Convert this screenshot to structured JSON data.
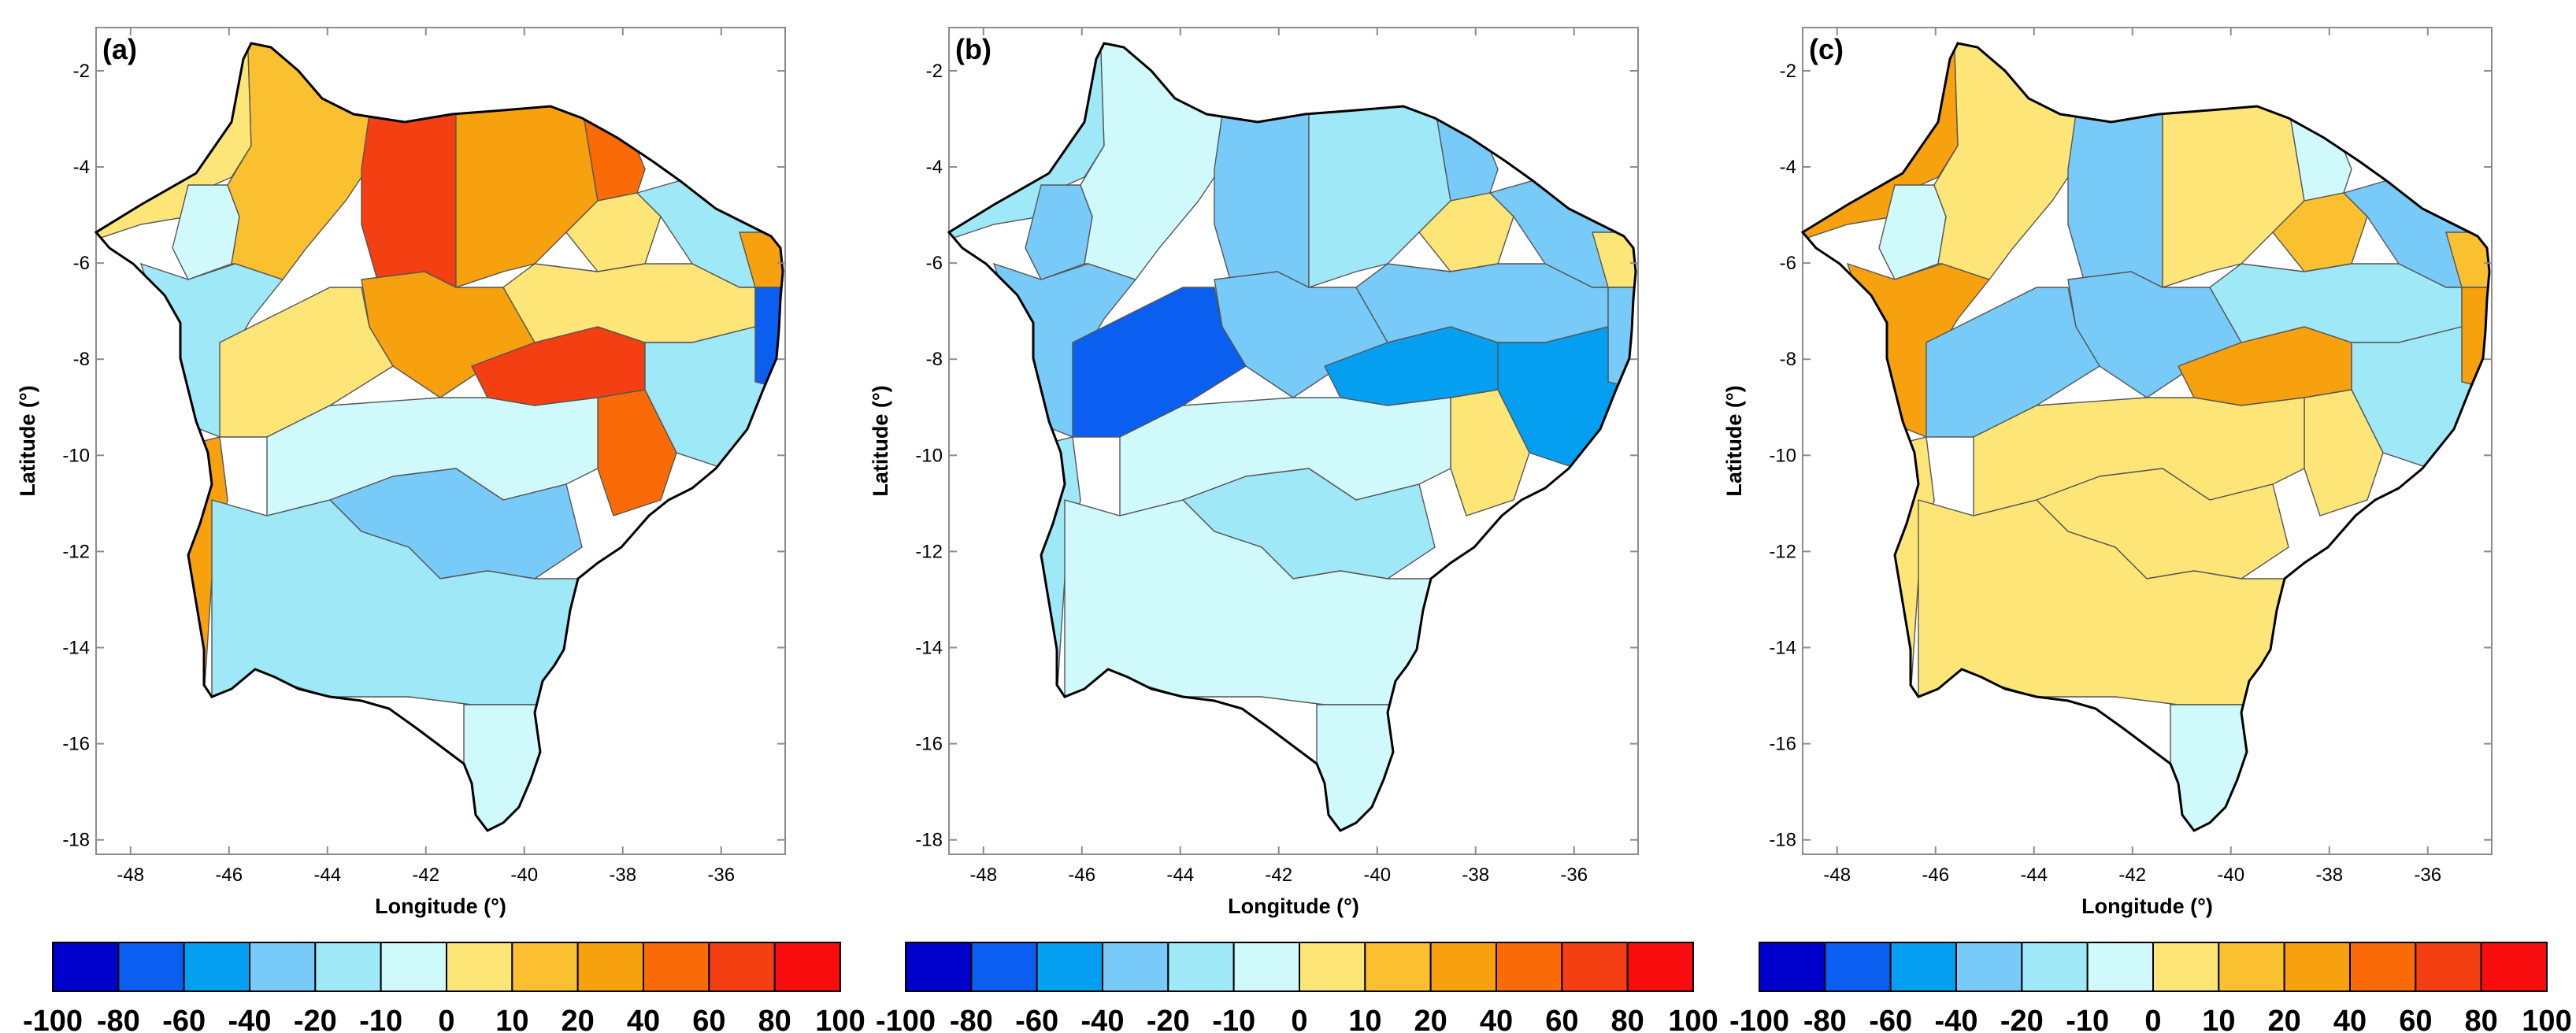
{
  "palette": {
    "-100": "#0000cc",
    "-80": "#0a5ff0",
    "-60": "#049ff0",
    "-40": "#78cbf9",
    "-20": "#9fe8f7",
    "-10": "#d0f9fb",
    "0": "#fde677",
    "10": "#fbc030",
    "20": "#f8a10e",
    "40": "#fa6a06",
    "60": "#f43f13",
    "80": "#f70d0d"
  },
  "axes": {
    "xlabel": "Longitude (°)",
    "ylabel": "Latitude (°)",
    "xticks": [
      "-48",
      "-46",
      "-44",
      "-42",
      "-40",
      "-38",
      "-36"
    ],
    "yticks": [
      "-2",
      "-4",
      "-6",
      "-8",
      "-10",
      "-12",
      "-14",
      "-16",
      "-18"
    ]
  },
  "colorbar": {
    "labels": [
      "-100",
      "-80",
      "-60",
      "-40",
      "-20",
      "-10",
      "0",
      "10",
      "20",
      "40",
      "60",
      "80",
      "100"
    ],
    "colors": [
      "#0000cc",
      "#0a5ff0",
      "#049ff0",
      "#78cbf9",
      "#9fe8f7",
      "#d0f9fb",
      "#fde677",
      "#fbc030",
      "#f8a10e",
      "#fa6a06",
      "#f43f13",
      "#f70d0d"
    ]
  },
  "panels": [
    {
      "label": "(a)",
      "regions": {
        "nw": "0",
        "north_center": "10",
        "pi_north": "60",
        "ce_west": "20",
        "ce_north": "40",
        "rn_west": "0",
        "rn_east": "-20",
        "east_coast": "20",
        "east_blue": "-80",
        "pi_nw_white": "-10",
        "ma_south_blue": "-20",
        "pi_mid": "20",
        "pi_center": "0",
        "pe_red": "60",
        "pe_yellow": "0",
        "al_east": "-20",
        "sergipe": "40",
        "west_south": "20",
        "ba_north_white": "-10",
        "ba_center_blue": "-40",
        "ba_south": "-20",
        "ba_tail": "-10"
      }
    },
    {
      "label": "(b)",
      "regions": {
        "nw": "-20",
        "north_center": "-10",
        "pi_north": "-40",
        "ce_west": "-20",
        "ce_north": "-40",
        "rn_west": "0",
        "rn_east": "-40",
        "east_coast": "0",
        "east_blue": "-40",
        "pi_nw_white": "-40",
        "ma_south_blue": "-40",
        "pi_mid": "-40",
        "pi_center": "-80",
        "pe_red": "-60",
        "pe_yellow": "-40",
        "al_east": "-60",
        "sergipe": "0",
        "west_south": "-20",
        "ba_north_white": "-10",
        "ba_center_blue": "-20",
        "ba_south": "-10",
        "ba_tail": "-10"
      }
    },
    {
      "label": "(c)",
      "regions": {
        "nw": "20",
        "north_center": "0",
        "pi_north": "-40",
        "ce_west": "0",
        "ce_north": "-10",
        "rn_west": "10",
        "rn_east": "-40",
        "east_coast": "10",
        "east_blue": "20",
        "pi_nw_white": "-10",
        "ma_south_blue": "20",
        "pi_mid": "-40",
        "pi_center": "-40",
        "pe_red": "20",
        "pe_yellow": "-20",
        "al_east": "-20",
        "sergipe": "0",
        "west_south": "0",
        "ba_north_white": "0",
        "ba_center_blue": "0",
        "ba_south": "0",
        "ba_tail": "-10"
      }
    }
  ]
}
